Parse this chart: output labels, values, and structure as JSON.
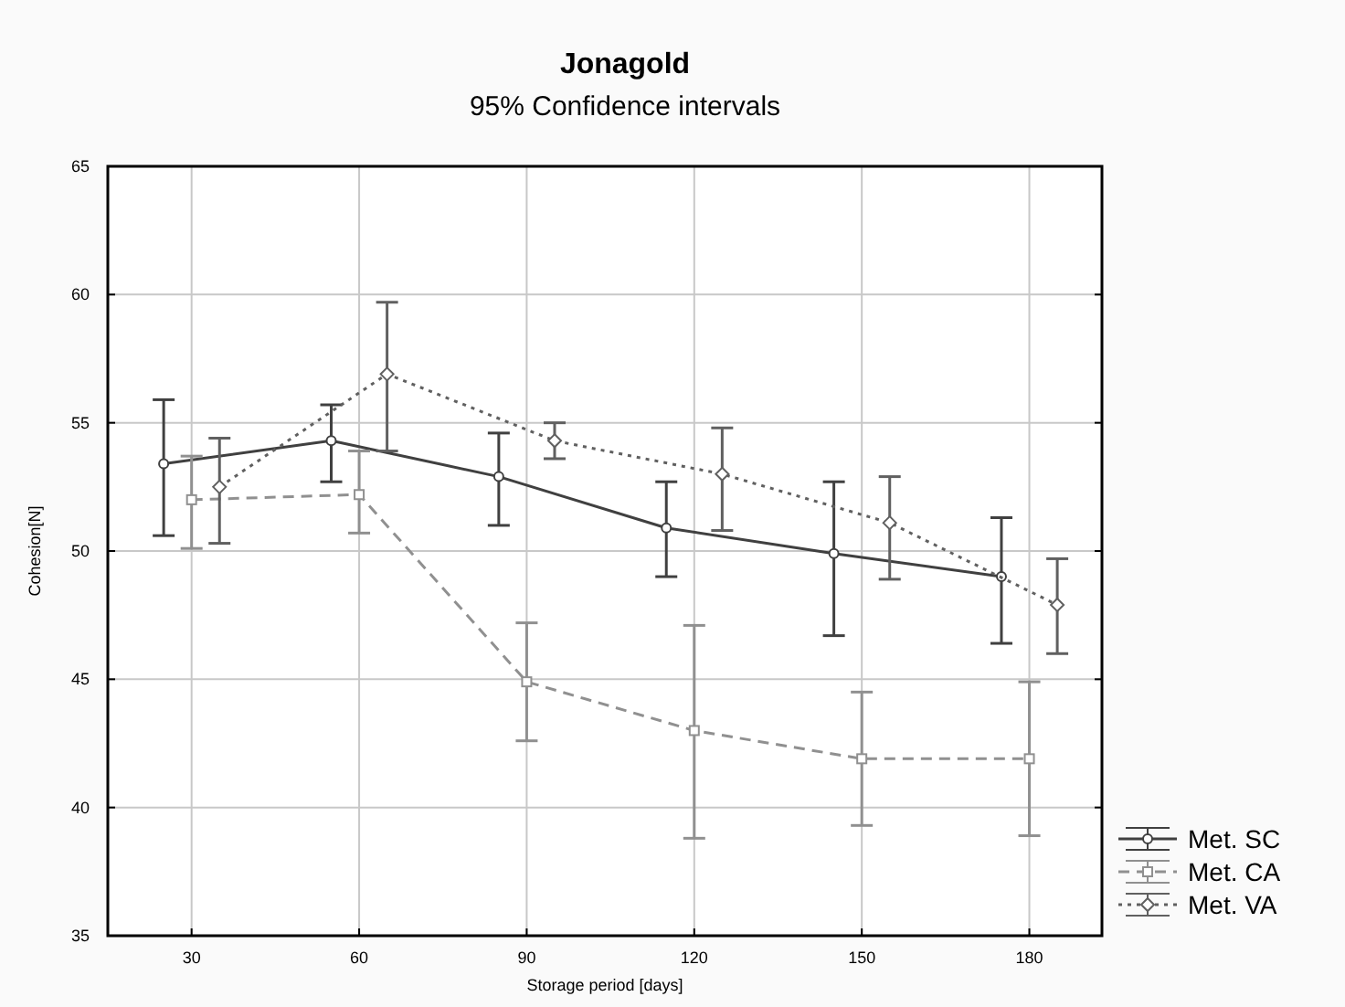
{
  "chart_data": {
    "type": "line",
    "title": "Jonagold",
    "subtitle": "95% Confidence intervals",
    "xlabel": "Storage period [days]",
    "ylabel": "Cohesion[N]",
    "xlim": [
      15,
      193
    ],
    "xticks": [
      30,
      60,
      90,
      120,
      150,
      180
    ],
    "ylim": [
      35,
      65
    ],
    "yticks": [
      35,
      40,
      45,
      50,
      55,
      60,
      65
    ],
    "grid": true,
    "legend": "bottom right",
    "series": [
      {
        "name": "Met. SC",
        "color": "#404040",
        "marker": "circle",
        "line_style": "solid",
        "x": [
          25,
          55,
          85,
          115,
          145,
          175
        ],
        "values": [
          53.4,
          54.3,
          52.9,
          50.9,
          49.9,
          49.0
        ],
        "errors": [
          [
            50.6,
            55.9
          ],
          [
            52.7,
            55.7
          ],
          [
            51.0,
            54.6
          ],
          [
            49.0,
            52.7
          ],
          [
            46.7,
            52.7
          ],
          [
            46.4,
            51.3
          ]
        ]
      },
      {
        "name": "Met. CA",
        "color": "#909090",
        "marker": "square",
        "line_style": "dashed",
        "x": [
          30,
          60,
          90,
          120,
          150,
          180
        ],
        "values": [
          52.0,
          52.2,
          44.9,
          43.0,
          41.9,
          41.9
        ],
        "errors": [
          [
            50.1,
            53.7
          ],
          [
            50.7,
            53.9
          ],
          [
            42.6,
            47.2
          ],
          [
            38.8,
            47.1
          ],
          [
            39.3,
            44.5
          ],
          [
            38.9,
            44.9
          ]
        ]
      },
      {
        "name": "Met. VA",
        "color": "#606060",
        "marker": "diamond",
        "line_style": "dotted",
        "x": [
          35,
          65,
          95,
          125,
          155,
          185
        ],
        "values": [
          52.5,
          56.9,
          54.3,
          53.0,
          51.1,
          47.9
        ],
        "errors": [
          [
            50.3,
            54.4
          ],
          [
            53.9,
            59.7
          ],
          [
            53.6,
            55.0
          ],
          [
            50.8,
            54.8
          ],
          [
            48.9,
            52.9
          ],
          [
            46.0,
            49.7
          ]
        ]
      }
    ]
  }
}
